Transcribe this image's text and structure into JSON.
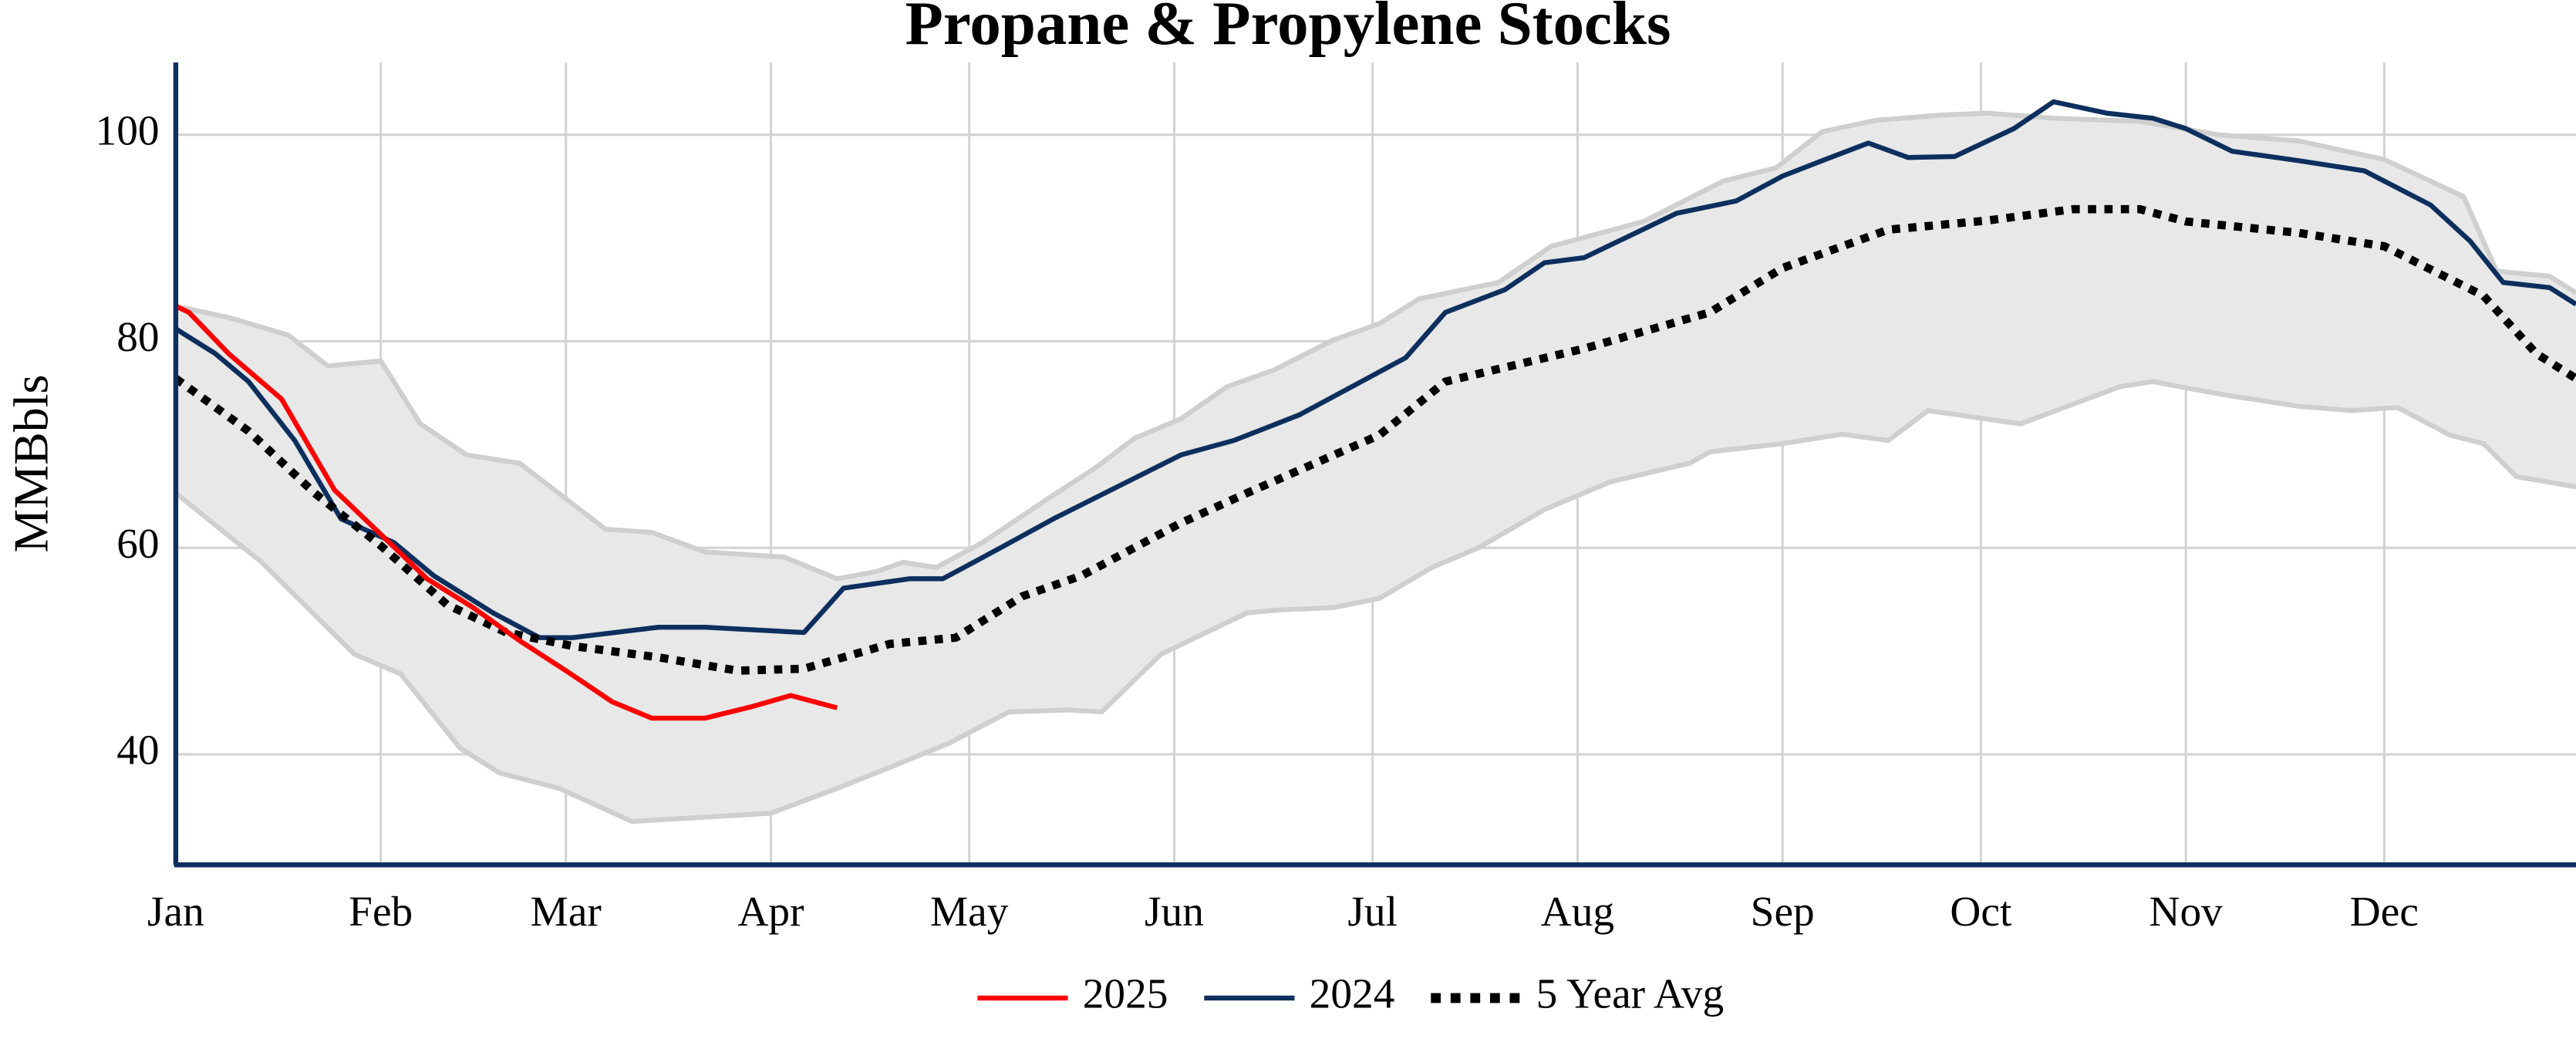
{
  "chart_data": {
    "type": "line",
    "title": "Propane & Propylene Stocks",
    "y_label": "MMBbls",
    "xlim": [
      0,
      363
    ],
    "ylim": [
      29.3,
      107
    ],
    "xticks": [
      {
        "value": 0,
        "label": "Jan"
      },
      {
        "value": 31,
        "label": "Feb"
      },
      {
        "value": 59,
        "label": "Mar"
      },
      {
        "value": 90,
        "label": "Apr"
      },
      {
        "value": 120,
        "label": "May"
      },
      {
        "value": 151,
        "label": "Jun"
      },
      {
        "value": 181,
        "label": "Jul"
      },
      {
        "value": 212,
        "label": "Aug"
      },
      {
        "value": 243,
        "label": "Sep"
      },
      {
        "value": 273,
        "label": "Oct"
      },
      {
        "value": 304,
        "label": "Nov"
      },
      {
        "value": 334,
        "label": "Dec"
      }
    ],
    "yticks": [
      40,
      60,
      80,
      100
    ],
    "grid": true,
    "legend": "bottom",
    "band": {
      "color": "#e8e8e8",
      "edge_color": "#cfcfcf",
      "upper": {
        "x": [
          0,
          8,
          17,
          23,
          31,
          37,
          44,
          52,
          65,
          72,
          80,
          92,
          100,
          106,
          110,
          115,
          122,
          132,
          139,
          145,
          152,
          159,
          166,
          175,
          182,
          188,
          200,
          208,
          222,
          234,
          242,
          249,
          257,
          267,
          274,
          284,
          297,
          309,
          321,
          334,
          346,
          351,
          359,
          363
        ],
        "values": [
          83.4,
          82.3,
          80.6,
          77.6,
          78.1,
          72.0,
          69.0,
          68.2,
          61.8,
          61.5,
          59.6,
          59.1,
          57.0,
          57.7,
          58.6,
          58.1,
          60.5,
          64.8,
          67.7,
          70.6,
          72.5,
          75.6,
          77.2,
          80.1,
          81.7,
          84.1,
          85.7,
          89.2,
          91.6,
          95.5,
          96.8,
          100.3,
          101.4,
          101.9,
          102.1,
          101.6,
          101.3,
          100,
          99.4,
          97.6,
          94.0,
          86.8,
          86.3,
          84.7
        ]
      },
      "lower": {
        "x": [
          0,
          13,
          27,
          34,
          43,
          49,
          58,
          69,
          90,
          100,
          109,
          117,
          126,
          135,
          140,
          149,
          162,
          167,
          175,
          182,
          190,
          197,
          207,
          217,
          229,
          232,
          243,
          252,
          259,
          265,
          279,
          294,
          299,
          309,
          321,
          329,
          336,
          344,
          349,
          354,
          363
        ],
        "values": [
          65.3,
          58.6,
          49.7,
          47.8,
          40.6,
          38.2,
          36.7,
          33.5,
          34.3,
          36.7,
          39.0,
          41.1,
          44.1,
          44.3,
          44.1,
          49.7,
          53.7,
          54.0,
          54.2,
          55.1,
          58.1,
          60.0,
          63.7,
          66.4,
          68.2,
          69.3,
          70.1,
          71.0,
          70.4,
          73.3,
          72.0,
          75.6,
          76.1,
          74.9,
          73.7,
          73.3,
          73.6,
          70.9,
          70.1,
          66.9,
          65.9
        ]
      }
    },
    "series": [
      {
        "name": "2025",
        "color": "#ff0000",
        "dash": false,
        "x": [
          0,
          2,
          8,
          16,
          24,
          31,
          38,
          45,
          52,
          59,
          66,
          72,
          80,
          87,
          93,
          100
        ],
        "values": [
          83.4,
          82.8,
          78.8,
          74.4,
          65.6,
          61.3,
          57.0,
          54.2,
          51.0,
          48.1,
          45.1,
          43.5,
          43.5,
          44.6,
          45.7,
          44.5
        ]
      },
      {
        "name": "2024",
        "color": "#0d2f5e",
        "dash": false,
        "x": [
          0,
          6,
          11,
          18,
          25,
          33,
          39,
          48,
          55,
          60,
          73,
          80,
          95,
          101,
          111,
          116,
          125,
          133,
          152,
          160,
          170,
          186,
          192,
          201,
          207,
          213,
          227,
          236,
          243,
          249,
          256,
          262,
          269,
          278,
          284,
          292,
          299,
          304,
          311,
          321,
          331,
          341,
          347,
          352,
          359,
          363
        ],
        "values": [
          81.2,
          78.8,
          76.1,
          70.4,
          62.8,
          60.5,
          57.3,
          53.7,
          51.3,
          51.3,
          52.3,
          52.3,
          51.8,
          56.1,
          57.0,
          57.0,
          60.1,
          62.9,
          69.0,
          70.4,
          72.9,
          78.4,
          82.8,
          85.0,
          87.6,
          88.1,
          92.4,
          93.6,
          96.0,
          97.5,
          99.2,
          97.8,
          97.9,
          100.6,
          103.2,
          102.1,
          101.6,
          100.6,
          98.4,
          97.5,
          96.5,
          93.2,
          89.7,
          85.7,
          85.2,
          83.6
        ]
      },
      {
        "name": "5 Year Avg",
        "color": "#000000",
        "dash": true,
        "x": [
          0,
          11,
          21,
          31,
          41,
          50,
          60,
          73,
          85,
          95,
          108,
          118,
          128,
          137,
          152,
          162,
          182,
          192,
          213,
          232,
          243,
          259,
          274,
          287,
          297,
          304,
          321,
          334,
          349,
          357,
          363
        ],
        "values": [
          76.4,
          71.3,
          65.3,
          60.2,
          54.5,
          51.8,
          50.5,
          49.4,
          48.1,
          48.3,
          50.7,
          51.3,
          55.3,
          57.3,
          62.4,
          65.3,
          70.9,
          76.1,
          79.3,
          82.8,
          87.1,
          90.8,
          91.7,
          92.8,
          92.8,
          91.6,
          90.5,
          89.2,
          84.4,
          78.8,
          76.4
        ]
      }
    ]
  }
}
